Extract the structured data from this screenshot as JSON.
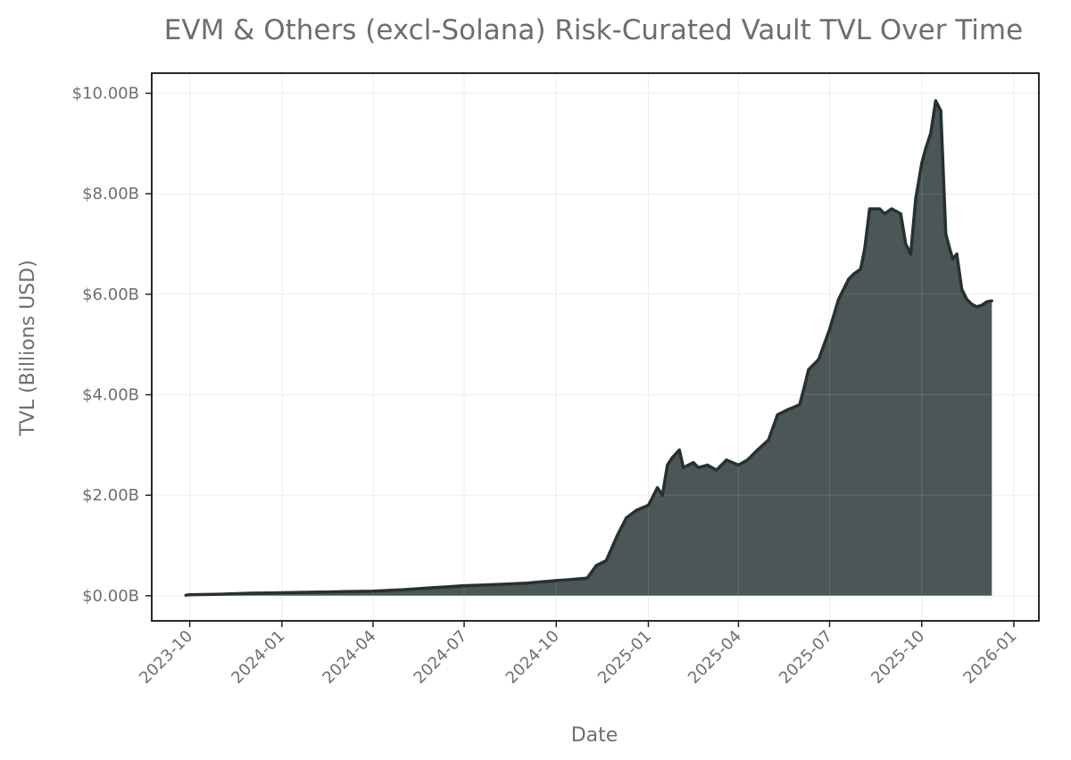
{
  "chart_data": {
    "type": "area",
    "title": "EVM & Others (excl-Solana) Risk-Curated Vault TVL Over Time",
    "xlabel": "Date",
    "ylabel": "TVL (Billions USD)",
    "xlim": [
      "2023-08-24",
      "2026-01-26"
    ],
    "ylim": [
      -0.5,
      10.4
    ],
    "grid": true,
    "legend": "none",
    "colors": {
      "fill": "#4b5757",
      "line": "#263232",
      "frame": "#111111"
    },
    "x_ticks": [
      "2023-10-01",
      "2024-01-01",
      "2024-04-01",
      "2024-07-01",
      "2024-10-01",
      "2025-01-01",
      "2025-04-01",
      "2025-07-01",
      "2025-10-01",
      "2026-01-01"
    ],
    "x_tick_labels": [
      "2023-10",
      "2024-01",
      "2024-04",
      "2024-07",
      "2024-10",
      "2025-01",
      "2025-04",
      "2025-07",
      "2025-10",
      "2026-01"
    ],
    "y_ticks": [
      0,
      2,
      4,
      6,
      8,
      10
    ],
    "y_tick_labels": [
      "$0.00B",
      "$2.00B",
      "$4.00B",
      "$6.00B",
      "$8.00B",
      "$10.00B"
    ],
    "series": [
      {
        "x": [
          "2023-09-27",
          "2023-10-01",
          "2023-11-01",
          "2023-12-01",
          "2024-01-01",
          "2024-02-01",
          "2024-03-01",
          "2024-04-01",
          "2024-05-01",
          "2024-06-01",
          "2024-07-01",
          "2024-08-01",
          "2024-09-01",
          "2024-10-01",
          "2024-10-15",
          "2024-11-01",
          "2024-11-10",
          "2024-11-20",
          "2024-12-01",
          "2024-12-10",
          "2024-12-20",
          "2025-01-01",
          "2025-01-05",
          "2025-01-10",
          "2025-01-15",
          "2025-01-20",
          "2025-01-25",
          "2025-02-01",
          "2025-02-05",
          "2025-02-10",
          "2025-02-15",
          "2025-02-20",
          "2025-03-01",
          "2025-03-10",
          "2025-03-20",
          "2025-04-01",
          "2025-04-10",
          "2025-04-20",
          "2025-05-01",
          "2025-05-10",
          "2025-05-20",
          "2025-06-01",
          "2025-06-05",
          "2025-06-10",
          "2025-06-20",
          "2025-07-01",
          "2025-07-10",
          "2025-07-20",
          "2025-07-25",
          "2025-08-01",
          "2025-08-05",
          "2025-08-10",
          "2025-08-20",
          "2025-08-25",
          "2025-09-01",
          "2025-09-10",
          "2025-09-15",
          "2025-09-20",
          "2025-09-25",
          "2025-10-01",
          "2025-10-05",
          "2025-10-10",
          "2025-10-15",
          "2025-10-20",
          "2025-10-25",
          "2025-10-29",
          "2025-11-01",
          "2025-11-05",
          "2025-11-10",
          "2025-11-15",
          "2025-11-20",
          "2025-11-25",
          "2025-11-30",
          "2025-12-05",
          "2025-12-10"
        ],
        "values": [
          0.01,
          0.02,
          0.03,
          0.05,
          0.06,
          0.07,
          0.08,
          0.09,
          0.12,
          0.16,
          0.2,
          0.22,
          0.25,
          0.3,
          0.32,
          0.35,
          0.6,
          0.7,
          1.2,
          1.55,
          1.7,
          1.8,
          1.95,
          2.15,
          2.0,
          2.6,
          2.75,
          2.9,
          2.55,
          2.6,
          2.65,
          2.55,
          2.6,
          2.5,
          2.7,
          2.6,
          2.7,
          2.9,
          3.1,
          3.6,
          3.7,
          3.8,
          4.1,
          4.5,
          4.7,
          5.3,
          5.9,
          6.3,
          6.4,
          6.5,
          6.9,
          7.7,
          7.7,
          7.6,
          7.7,
          7.6,
          7.0,
          6.8,
          7.9,
          8.6,
          8.9,
          9.2,
          9.85,
          9.65,
          7.2,
          6.9,
          6.7,
          6.8,
          6.1,
          5.9,
          5.8,
          5.75,
          5.78,
          5.85,
          5.87
        ]
      }
    ]
  }
}
